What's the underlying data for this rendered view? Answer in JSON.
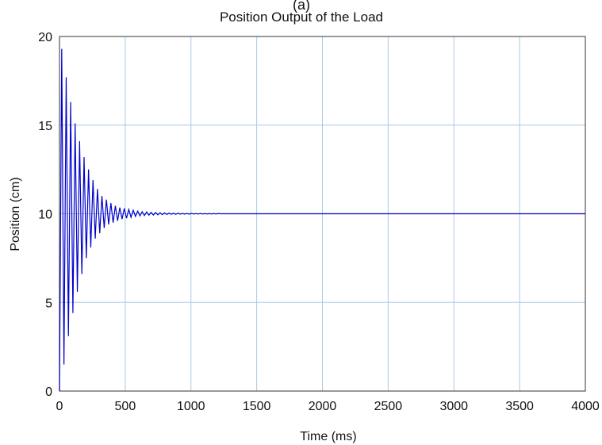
{
  "header_fragment": "(a)",
  "chart_data": {
    "type": "line",
    "title": "Position Output of the Load",
    "xlabel": "Time (ms)",
    "ylabel": "Position (cm)",
    "xlim": [
      0,
      4000
    ],
    "ylim": [
      0,
      20
    ],
    "x_ticks": [
      "0",
      "500",
      "1000",
      "1500",
      "2000",
      "2500",
      "3000",
      "3500",
      "4000"
    ],
    "y_ticks": [
      "0",
      "5",
      "10",
      "15",
      "20"
    ],
    "grid": true,
    "line_color": "#0000cc",
    "grid_color": "#a9c9e6",
    "series": [
      {
        "x": [
          0,
          17,
          34,
          51,
          68,
          85,
          102,
          119,
          136,
          153,
          170,
          187,
          204,
          221,
          238,
          255,
          272,
          289,
          306,
          323,
          340,
          357,
          374,
          391,
          408,
          425,
          442,
          459,
          476,
          493,
          510,
          527,
          544,
          561,
          578,
          595,
          612,
          629,
          646,
          663,
          680,
          697,
          714,
          731,
          748,
          765,
          782,
          799,
          816,
          833,
          850,
          867,
          884,
          901,
          918,
          935,
          952,
          969,
          986,
          1003,
          1020,
          1037,
          1054,
          1071,
          1088,
          1105,
          1122,
          1139,
          1156,
          1173,
          1190,
          1207,
          1224,
          1241,
          1258,
          1275,
          1292,
          1309,
          1326,
          1343,
          1360,
          1377,
          1394,
          1411,
          1428,
          1445,
          1462,
          1479,
          1496,
          1513,
          1530,
          1547,
          1564,
          1581,
          1598,
          1615,
          1632,
          1649,
          1666,
          1683,
          1700,
          4000
        ],
        "y": [
          0,
          19.3,
          1.5,
          17.7,
          3.1,
          16.3,
          4.4,
          15.1,
          5.6,
          14.1,
          6.6,
          13.2,
          7.5,
          12.5,
          8.1,
          11.9,
          8.6,
          11.4,
          8.9,
          11.0,
          9.2,
          10.8,
          9.4,
          10.6,
          9.5,
          10.45,
          9.6,
          10.35,
          9.7,
          10.3,
          9.75,
          10.25,
          9.8,
          10.2,
          9.85,
          10.15,
          9.88,
          10.12,
          9.9,
          10.1,
          9.92,
          10.08,
          9.93,
          10.07,
          9.94,
          10.06,
          9.95,
          10.05,
          9.96,
          10.04,
          9.97,
          10.03,
          9.97,
          10.03,
          9.98,
          10.02,
          9.98,
          10.02,
          9.98,
          10.02,
          9.99,
          10.01,
          9.99,
          10.01,
          9.99,
          10.01,
          9.99,
          10.01,
          9.99,
          10.01,
          9.99,
          10.01,
          10.0,
          10.0,
          10.0,
          10.0,
          10.0,
          10.0,
          10.0,
          10.0,
          10.0,
          10.0,
          10.0,
          10.0,
          10.0,
          10.0,
          10.0,
          10.0,
          10.0,
          10.0,
          10.0,
          10.0,
          10.0,
          10.0,
          10.0,
          10.0,
          10.0,
          10.0,
          10.0,
          10.0,
          10.0,
          10.0
        ]
      }
    ]
  }
}
